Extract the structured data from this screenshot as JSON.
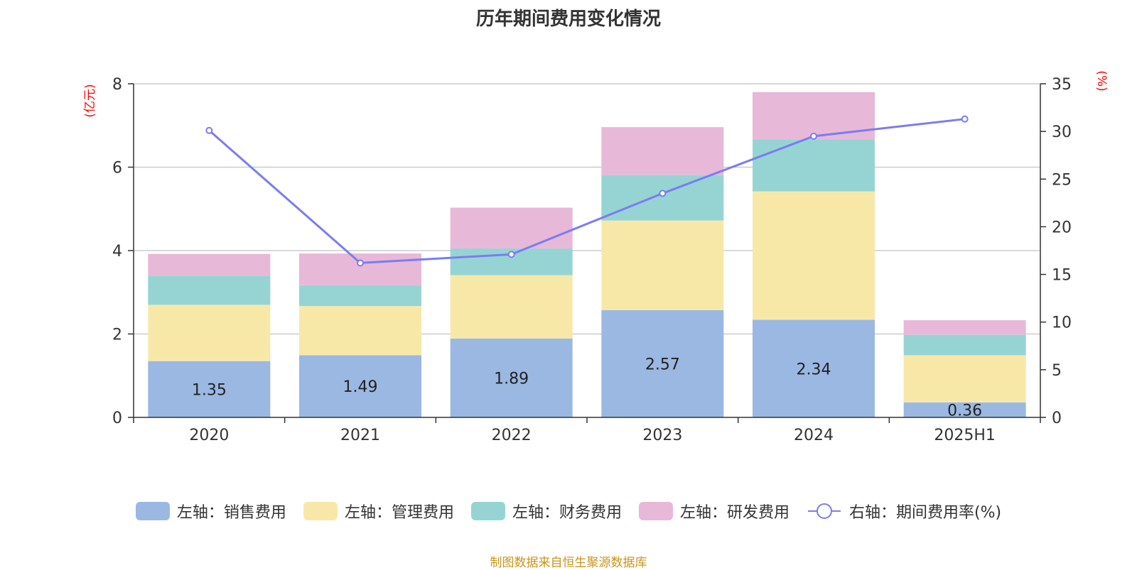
{
  "title": "历年期间费用变化情况",
  "source": "制图数据来自恒生聚源数据库",
  "colors": {
    "sales": "#9bb8e3",
    "admin": "#f8e8a8",
    "finance": "#96d4d4",
    "rnd": "#e8b8d8",
    "rate_line": "#7b7cf0",
    "axis_unit": "#ff0000",
    "grid": "#cccccc",
    "axis_text": "#333333"
  },
  "chart_data": {
    "type": "bar",
    "stacked": true,
    "categories": [
      "2020",
      "2021",
      "2022",
      "2023",
      "2024",
      "2025H1"
    ],
    "left_axis": {
      "unit_label": "(亿元)",
      "ylim": [
        0,
        8
      ],
      "ticks": [
        0,
        2,
        4,
        6,
        8
      ]
    },
    "right_axis": {
      "unit_label": "(%)",
      "ylim": [
        0,
        35
      ],
      "ticks": [
        0,
        5,
        10,
        15,
        20,
        25,
        30,
        35
      ]
    },
    "grid": true,
    "legend_position": "bottom",
    "series": [
      {
        "name": "左轴：销售费用",
        "axis": "left",
        "values": [
          1.35,
          1.49,
          1.89,
          2.57,
          2.34,
          0.36
        ],
        "data_labels": [
          "1.35",
          "1.49",
          "1.89",
          "2.57",
          "2.34",
          "0.36"
        ]
      },
      {
        "name": "左轴：管理费用",
        "axis": "left",
        "values": [
          1.35,
          1.18,
          1.52,
          2.15,
          3.08,
          1.13
        ]
      },
      {
        "name": "左轴：财务费用",
        "axis": "left",
        "values": [
          0.7,
          0.5,
          0.64,
          1.09,
          1.25,
          0.49
        ]
      },
      {
        "name": "左轴：研发费用",
        "axis": "left",
        "values": [
          0.52,
          0.76,
          0.98,
          1.15,
          1.13,
          0.35
        ]
      },
      {
        "name": "右轴：期间费用率(%)",
        "axis": "right",
        "type": "line",
        "values": [
          30.1,
          16.2,
          17.1,
          23.5,
          29.5,
          31.3
        ]
      }
    ]
  }
}
